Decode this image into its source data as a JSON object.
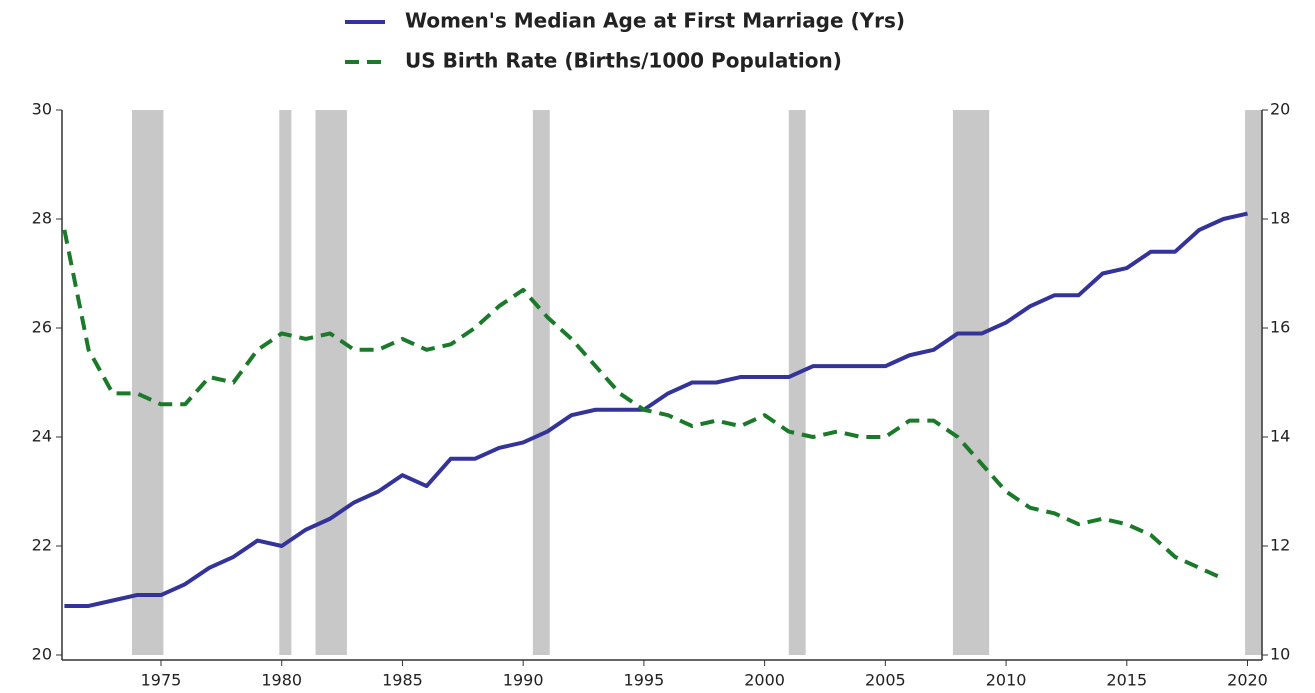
{
  "chart_data": {
    "type": "line",
    "x": [
      1971,
      1972,
      1973,
      1974,
      1975,
      1976,
      1977,
      1978,
      1979,
      1980,
      1981,
      1982,
      1983,
      1984,
      1985,
      1986,
      1987,
      1988,
      1989,
      1990,
      1991,
      1992,
      1993,
      1994,
      1995,
      1996,
      1997,
      1998,
      1999,
      2000,
      2001,
      2002,
      2003,
      2004,
      2005,
      2006,
      2007,
      2008,
      2009,
      2010,
      2011,
      2012,
      2013,
      2014,
      2015,
      2016,
      2017,
      2018,
      2019,
      2020
    ],
    "series": [
      {
        "name": "Women's Median Age at First Marriage (Yrs)",
        "color": "#333399",
        "dash": false,
        "axis": "y",
        "values": [
          20.9,
          20.9,
          21.0,
          21.1,
          21.1,
          21.3,
          21.6,
          21.8,
          22.1,
          22.0,
          22.3,
          22.5,
          22.8,
          23.0,
          23.3,
          23.1,
          23.6,
          23.6,
          23.8,
          23.9,
          24.1,
          24.4,
          24.5,
          24.5,
          24.5,
          24.8,
          25.0,
          25.0,
          25.1,
          25.1,
          25.1,
          25.3,
          25.3,
          25.3,
          25.3,
          25.5,
          25.6,
          25.9,
          25.9,
          26.1,
          26.4,
          26.6,
          26.6,
          27.0,
          27.1,
          27.4,
          27.4,
          27.8,
          28.0,
          28.1
        ]
      },
      {
        "name": "US Birth Rate (Births/1000 Population)",
        "color": "#1a7a2a",
        "dash": true,
        "axis": "y2",
        "values": [
          17.8,
          15.6,
          14.8,
          14.8,
          14.6,
          14.6,
          15.1,
          15.0,
          15.6,
          15.9,
          15.8,
          15.9,
          15.6,
          15.6,
          15.8,
          15.6,
          15.7,
          16.0,
          16.4,
          16.7,
          16.2,
          15.8,
          15.3,
          14.8,
          14.5,
          14.4,
          14.2,
          14.3,
          14.2,
          14.4,
          14.1,
          14.0,
          14.1,
          14.0,
          14.0,
          14.3,
          14.3,
          14.0,
          13.5,
          13.0,
          12.7,
          12.6,
          12.4,
          12.5,
          12.4,
          12.2,
          11.8,
          11.6,
          11.4,
          null
        ]
      }
    ],
    "shaded_periods": [
      [
        1973.8,
        1975.1
      ],
      [
        1979.9,
        1980.4
      ],
      [
        1981.4,
        1982.7
      ],
      [
        1990.4,
        1991.1
      ],
      [
        2001.0,
        2001.7
      ],
      [
        2007.8,
        2009.3
      ],
      [
        2019.9,
        2020.6
      ]
    ],
    "shade_color": "#c8c8c8",
    "xlim": [
      1970.9,
      2020.6
    ],
    "xticks": [
      1975,
      1980,
      1985,
      1990,
      1995,
      2000,
      2005,
      2010,
      2015,
      2020
    ],
    "ylim": [
      20,
      30
    ],
    "yticks": [
      20,
      22,
      24,
      26,
      28,
      30
    ],
    "y2lim": [
      10,
      20
    ],
    "y2ticks": [
      10,
      12,
      14,
      16,
      18,
      20
    ],
    "grid": false
  }
}
